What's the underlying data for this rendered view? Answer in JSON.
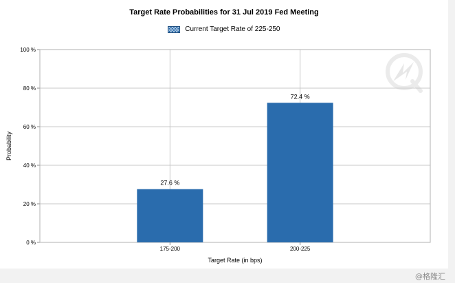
{
  "chart_data": {
    "type": "bar",
    "title": "Target Rate Probabilities for 31 Jul 2019 Fed Meeting",
    "legend": {
      "label": "Current Target Rate of 225-250",
      "placement": "top-center"
    },
    "categories": [
      "175-200",
      "200-225"
    ],
    "values": [
      27.6,
      72.4
    ],
    "value_labels": [
      "27.6 %",
      "72.4 %"
    ],
    "xlabel": "Target Rate (in bps)",
    "ylabel": "Probability",
    "ylim": [
      0,
      100
    ],
    "yticks": [
      0,
      20,
      40,
      60,
      80,
      100
    ],
    "ytick_labels": [
      "0 %",
      "20 %",
      "40 %",
      "60 %",
      "80 %",
      "100 %"
    ],
    "grid": true,
    "bar_color": "#2a6cad"
  },
  "watermark": {
    "text": "@格隆汇"
  }
}
